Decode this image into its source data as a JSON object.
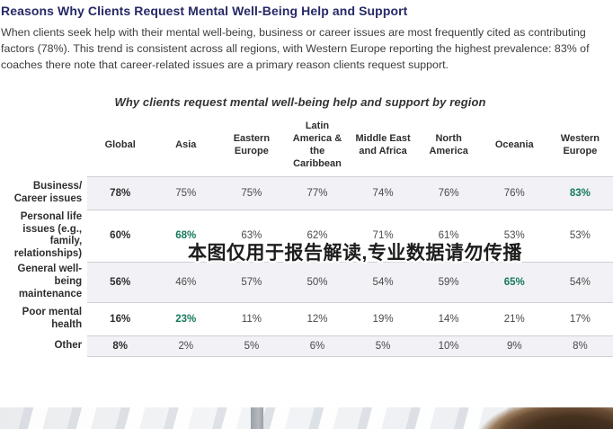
{
  "page": {
    "heading": "Reasons Why Clients Request Mental Well-Being Help and Support",
    "paragraph": "When clients seek help with their mental well-being, business or career issues are most frequently cited as contributing factors (78%). This trend is consistent across all regions, with Western Europe reporting the highest prevalence: 83% of coaches there note that career-related issues are a primary reason clients request support."
  },
  "watermark": {
    "text": "本图仅用于报告解读,专业数据请勿传播"
  },
  "chart_data": {
    "type": "table",
    "title": "Why clients request mental well-being help and support by region",
    "columns": [
      "Global",
      "Asia",
      "Eastern Europe",
      "Latin America & the Caribbean",
      "Middle East and Africa",
      "North America",
      "Oceania",
      "Western Europe"
    ],
    "rows": [
      {
        "label": "Business/ Career issues",
        "values": [
          "78%",
          "75%",
          "75%",
          "77%",
          "74%",
          "76%",
          "76%",
          "83%"
        ],
        "highlight_col": 7
      },
      {
        "label": "Personal life issues (e.g., family, relationships)",
        "values": [
          "60%",
          "68%",
          "63%",
          "62%",
          "71%",
          "61%",
          "53%",
          "53%"
        ],
        "highlight_col": 1
      },
      {
        "label": "General well-being maintenance",
        "values": [
          "56%",
          "46%",
          "57%",
          "50%",
          "54%",
          "59%",
          "65%",
          "54%"
        ],
        "highlight_col": 6
      },
      {
        "label": "Poor mental health",
        "values": [
          "16%",
          "23%",
          "11%",
          "12%",
          "19%",
          "14%",
          "21%",
          "17%"
        ],
        "highlight_col": 1
      },
      {
        "label": "Other",
        "values": [
          "8%",
          "2%",
          "5%",
          "6%",
          "5%",
          "10%",
          "9%",
          "8%"
        ],
        "highlight_col": -1
      }
    ],
    "colors": {
      "heading_navy": "#262a66",
      "highlight_green": "#157a5c",
      "shaded_row": "#f1f1f6",
      "body_text": "#3d3d3d"
    }
  }
}
